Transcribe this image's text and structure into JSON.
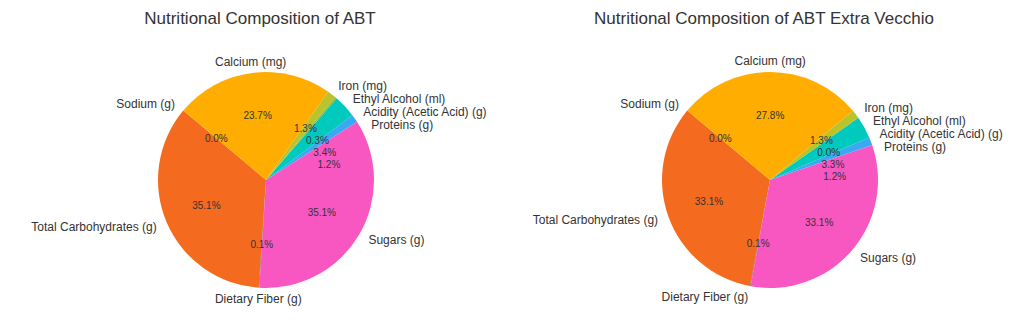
{
  "chart_data": [
    {
      "type": "pie",
      "title": "Nutritional Composition of ABT",
      "categories": [
        "Sodium (g)",
        "Total Carbohydrates (g)",
        "Dietary Fiber (g)",
        "Sugars (g)",
        "Proteins (g)",
        "Acidity (Acetic Acid) (g)",
        "Ethyl Alcohol (ml)",
        "Iron (mg)",
        "Calcium (mg)"
      ],
      "values": [
        0.0,
        35.1,
        0.1,
        35.1,
        1.2,
        3.4,
        0.3,
        1.3,
        23.7
      ],
      "value_labels": [
        "0.0%",
        "35.1%",
        "0.1%",
        "35.1%",
        "1.2%",
        "3.4%",
        "0.3%",
        "1.3%",
        "23.7%"
      ],
      "colors": [
        "#d62728",
        "#f46b1f",
        "#8c564b",
        "#f857c1",
        "#3aa8f2",
        "#00c9bd",
        "#8fbc3f",
        "#b8c42a",
        "#ffad00"
      ],
      "data_labels": true
    },
    {
      "type": "pie",
      "title": "Nutritional Composition of ABT Extra Vecchio",
      "categories": [
        "Sodium (g)",
        "Total Carbohydrates (g)",
        "Dietary Fiber (g)",
        "Sugars (g)",
        "Proteins (g)",
        "Acidity (Acetic Acid) (g)",
        "Ethyl Alcohol (ml)",
        "Iron (mg)",
        "Calcium (mg)"
      ],
      "values": [
        0.0,
        33.1,
        0.1,
        33.1,
        1.2,
        3.3,
        0.0,
        1.3,
        27.8
      ],
      "value_labels": [
        "0.0%",
        "33.1%",
        "0.1%",
        "33.1%",
        "1.2%",
        "3.3%",
        "0.0%",
        "1.3%",
        "27.8%"
      ],
      "colors": [
        "#d62728",
        "#f46b1f",
        "#8c564b",
        "#f857c1",
        "#3aa8f2",
        "#00c9bd",
        "#8fbc3f",
        "#b8c42a",
        "#ffad00"
      ],
      "data_labels": true
    }
  ]
}
